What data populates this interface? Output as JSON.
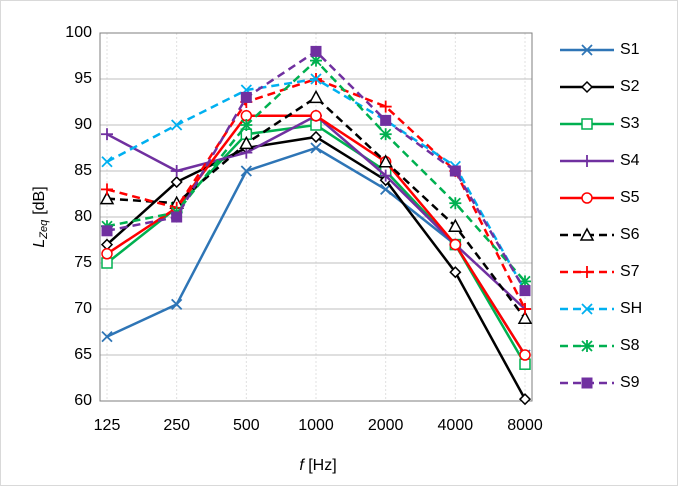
{
  "chart_data": {
    "type": "line",
    "x_label": {
      "symbol": "f",
      "unit": "[Hz]"
    },
    "y_label": {
      "symbol": "L",
      "subscript": "Zeq",
      "unit": "[dB]"
    },
    "categories": [
      "125",
      "250",
      "500",
      "1000",
      "2000",
      "4000",
      "8000"
    ],
    "ylim": [
      60,
      100
    ],
    "yticks": [
      60,
      65,
      70,
      75,
      80,
      85,
      90,
      95,
      100
    ],
    "grid": true,
    "legend": "right",
    "series": [
      {
        "name": "S1",
        "color": "#2e75b6",
        "marker": "x",
        "dash": false,
        "values": [
          67,
          70.5,
          85,
          87.5,
          83,
          77,
          65
        ]
      },
      {
        "name": "S2",
        "color": "#000000",
        "marker": "diamond",
        "dash": false,
        "values": [
          77,
          83.8,
          87.5,
          88.7,
          84,
          74,
          60.2
        ]
      },
      {
        "name": "S3",
        "color": "#00b050",
        "marker": "square",
        "dash": false,
        "values": [
          75,
          81,
          89,
          90,
          85,
          77,
          64
        ]
      },
      {
        "name": "S4",
        "color": "#7030a0",
        "marker": "plus",
        "dash": false,
        "values": [
          89,
          85,
          87,
          91,
          84.5,
          77,
          70
        ]
      },
      {
        "name": "S5",
        "color": "#ff0000",
        "marker": "circle",
        "dash": false,
        "values": [
          76,
          81,
          91,
          91,
          86,
          77,
          65
        ]
      },
      {
        "name": "S6",
        "color": "#000000",
        "marker": "triangle",
        "dash": true,
        "values": [
          82,
          81.5,
          88,
          93,
          86,
          79,
          69
        ]
      },
      {
        "name": "S7",
        "color": "#ff0000",
        "marker": "plus",
        "dash": true,
        "values": [
          83,
          81,
          92.5,
          95,
          92,
          85,
          70
        ]
      },
      {
        "name": "SH",
        "color": "#00b0f0",
        "marker": "x",
        "dash": true,
        "values": [
          86,
          90,
          93.8,
          95,
          90.5,
          85.5,
          72
        ]
      },
      {
        "name": "S8",
        "color": "#00b050",
        "marker": "asterisk",
        "dash": true,
        "values": [
          79,
          80.5,
          90,
          97,
          89,
          81.5,
          73
        ]
      },
      {
        "name": "S9",
        "color": "#7030a0",
        "marker": "filledsquare",
        "dash": true,
        "values": [
          78.5,
          80,
          93,
          98,
          90.5,
          85,
          72
        ]
      }
    ]
  }
}
